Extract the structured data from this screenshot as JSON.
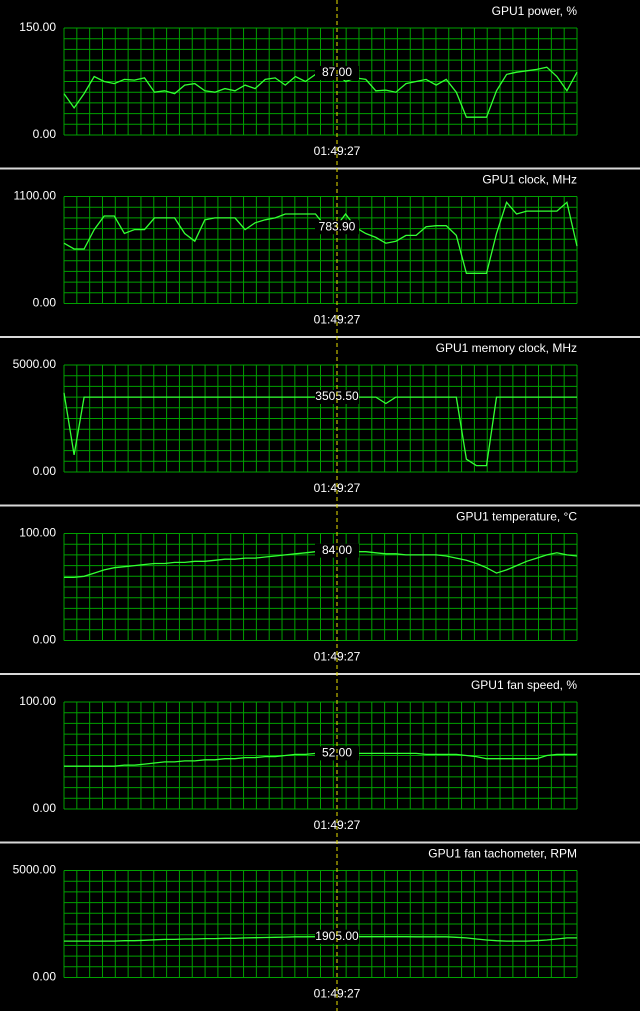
{
  "chart_data": [
    {
      "type": "line",
      "title": "GPU1 power, %",
      "color": "#33ff33",
      "ylim": [
        0,
        150
      ],
      "yticks": [
        {
          "value": 0,
          "label": "0.00"
        },
        {
          "value": 150,
          "label": "150.00"
        }
      ],
      "values": [
        58,
        38,
        58,
        82,
        75,
        72,
        78,
        77,
        80,
        60,
        62,
        58,
        70,
        72,
        62,
        60,
        65,
        62,
        70,
        65,
        78,
        80,
        70,
        82,
        75,
        85,
        78,
        87,
        75,
        80,
        78,
        62,
        63,
        60,
        72,
        75,
        78,
        70,
        78,
        60,
        25,
        25,
        25,
        62,
        85,
        88,
        90,
        92,
        95,
        82,
        62,
        88
      ],
      "cursor": {
        "value": 87,
        "label": "87.00",
        "time": "01:49:27"
      }
    },
    {
      "type": "line",
      "title": "GPU1 clock, MHz",
      "color": "#33ff33",
      "ylim": [
        0,
        1100
      ],
      "yticks": [
        {
          "value": 0,
          "label": "0.00"
        },
        {
          "value": 1100,
          "label": "1100.00"
        }
      ],
      "values": [
        620,
        560,
        560,
        760,
        900,
        900,
        720,
        760,
        760,
        880,
        880,
        880,
        720,
        640,
        860,
        880,
        880,
        880,
        760,
        830,
        860,
        880,
        920,
        920,
        920,
        920,
        790,
        784,
        920,
        780,
        720,
        680,
        620,
        640,
        700,
        700,
        790,
        800,
        800,
        700,
        310,
        310,
        310,
        720,
        1040,
        920,
        950,
        950,
        950,
        950,
        1040,
        590
      ],
      "cursor": {
        "value": 783.9,
        "label": "783.90",
        "time": "01:49:27"
      }
    },
    {
      "type": "line",
      "title": "GPU1 memory clock, MHz",
      "color": "#33ff33",
      "ylim": [
        0,
        5000
      ],
      "yticks": [
        {
          "value": 0,
          "label": "0.00"
        },
        {
          "value": 5000,
          "label": "5000.00"
        }
      ],
      "values": [
        3700,
        800,
        3500,
        3500,
        3500,
        3500,
        3500,
        3500,
        3500,
        3500,
        3500,
        3500,
        3500,
        3500,
        3500,
        3500,
        3500,
        3500,
        3500,
        3500,
        3500,
        3500,
        3500,
        3500,
        3500,
        3500,
        3500,
        3505.5,
        3500,
        3500,
        3500,
        3500,
        3200,
        3500,
        3500,
        3500,
        3500,
        3500,
        3500,
        3500,
        600,
        300,
        300,
        3500,
        3500,
        3500,
        3500,
        3500,
        3500,
        3500,
        3500,
        3500
      ],
      "cursor": {
        "value": 3505.5,
        "label": "3505.50",
        "time": "01:49:27"
      }
    },
    {
      "type": "line",
      "title": "GPU1 temperature, °C",
      "color": "#33ff33",
      "ylim": [
        0,
        100
      ],
      "yticks": [
        {
          "value": 0,
          "label": "0.00"
        },
        {
          "value": 100,
          "label": "100.00"
        }
      ],
      "values": [
        59,
        59,
        60,
        63,
        66,
        68,
        69,
        70,
        71,
        72,
        72,
        73,
        73,
        74,
        74,
        75,
        76,
        76,
        77,
        77,
        78,
        79,
        80,
        81,
        82,
        83,
        84,
        84,
        84,
        83,
        83,
        82,
        81,
        81,
        80,
        80,
        80,
        80,
        79,
        77,
        75,
        72,
        68,
        63,
        66,
        70,
        74,
        77,
        80,
        82,
        80,
        79
      ],
      "cursor": {
        "value": 84,
        "label": "84.00",
        "time": "01:49:27"
      }
    },
    {
      "type": "line",
      "title": "GPU1 fan speed, %",
      "color": "#33ff33",
      "ylim": [
        0,
        100
      ],
      "yticks": [
        {
          "value": 0,
          "label": "0.00"
        },
        {
          "value": 100,
          "label": "100.00"
        }
      ],
      "values": [
        40,
        40,
        40,
        40,
        40,
        40,
        41,
        41,
        42,
        43,
        44,
        44,
        45,
        45,
        46,
        46,
        47,
        47,
        48,
        48,
        49,
        49,
        50,
        51,
        51,
        52,
        52,
        52,
        52,
        52,
        52,
        52,
        52,
        52,
        52,
        52,
        51,
        51,
        51,
        51,
        50,
        49,
        47,
        47,
        47,
        47,
        47,
        47,
        50,
        51,
        51,
        51
      ],
      "cursor": {
        "value": 52,
        "label": "52.00",
        "time": "01:49:27"
      }
    },
    {
      "type": "line",
      "title": "GPU1 fan tachometer, RPM",
      "color": "#33ff33",
      "ylim": [
        0,
        5000
      ],
      "yticks": [
        {
          "value": 0,
          "label": "0.00"
        },
        {
          "value": 5000,
          "label": "5000.00"
        }
      ],
      "values": [
        1700,
        1700,
        1700,
        1700,
        1700,
        1700,
        1720,
        1720,
        1740,
        1760,
        1780,
        1780,
        1800,
        1800,
        1820,
        1820,
        1830,
        1830,
        1850,
        1860,
        1870,
        1880,
        1890,
        1900,
        1900,
        1905,
        1905,
        1905,
        1905,
        1905,
        1905,
        1905,
        1905,
        1905,
        1905,
        1900,
        1900,
        1900,
        1900,
        1880,
        1850,
        1800,
        1750,
        1720,
        1700,
        1700,
        1700,
        1720,
        1750,
        1800,
        1850,
        1850
      ],
      "cursor": {
        "value": 1905,
        "label": "1905.00",
        "time": "01:49:27"
      }
    }
  ]
}
